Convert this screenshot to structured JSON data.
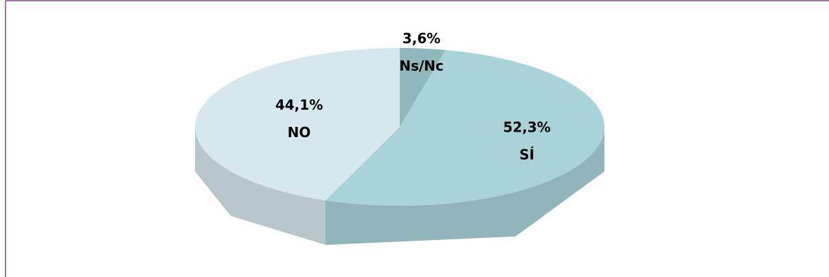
{
  "chart_data": {
    "type": "pie",
    "categories": [
      "Ns/Nc",
      "SÍ",
      "NO"
    ],
    "values": [
      3.6,
      52.3,
      44.1
    ],
    "value_labels": [
      "3,6%",
      "52,3%",
      "44,1%"
    ],
    "colors": [
      "#8fb9bc",
      "#a9d3d8",
      "#d6e7ed"
    ]
  }
}
